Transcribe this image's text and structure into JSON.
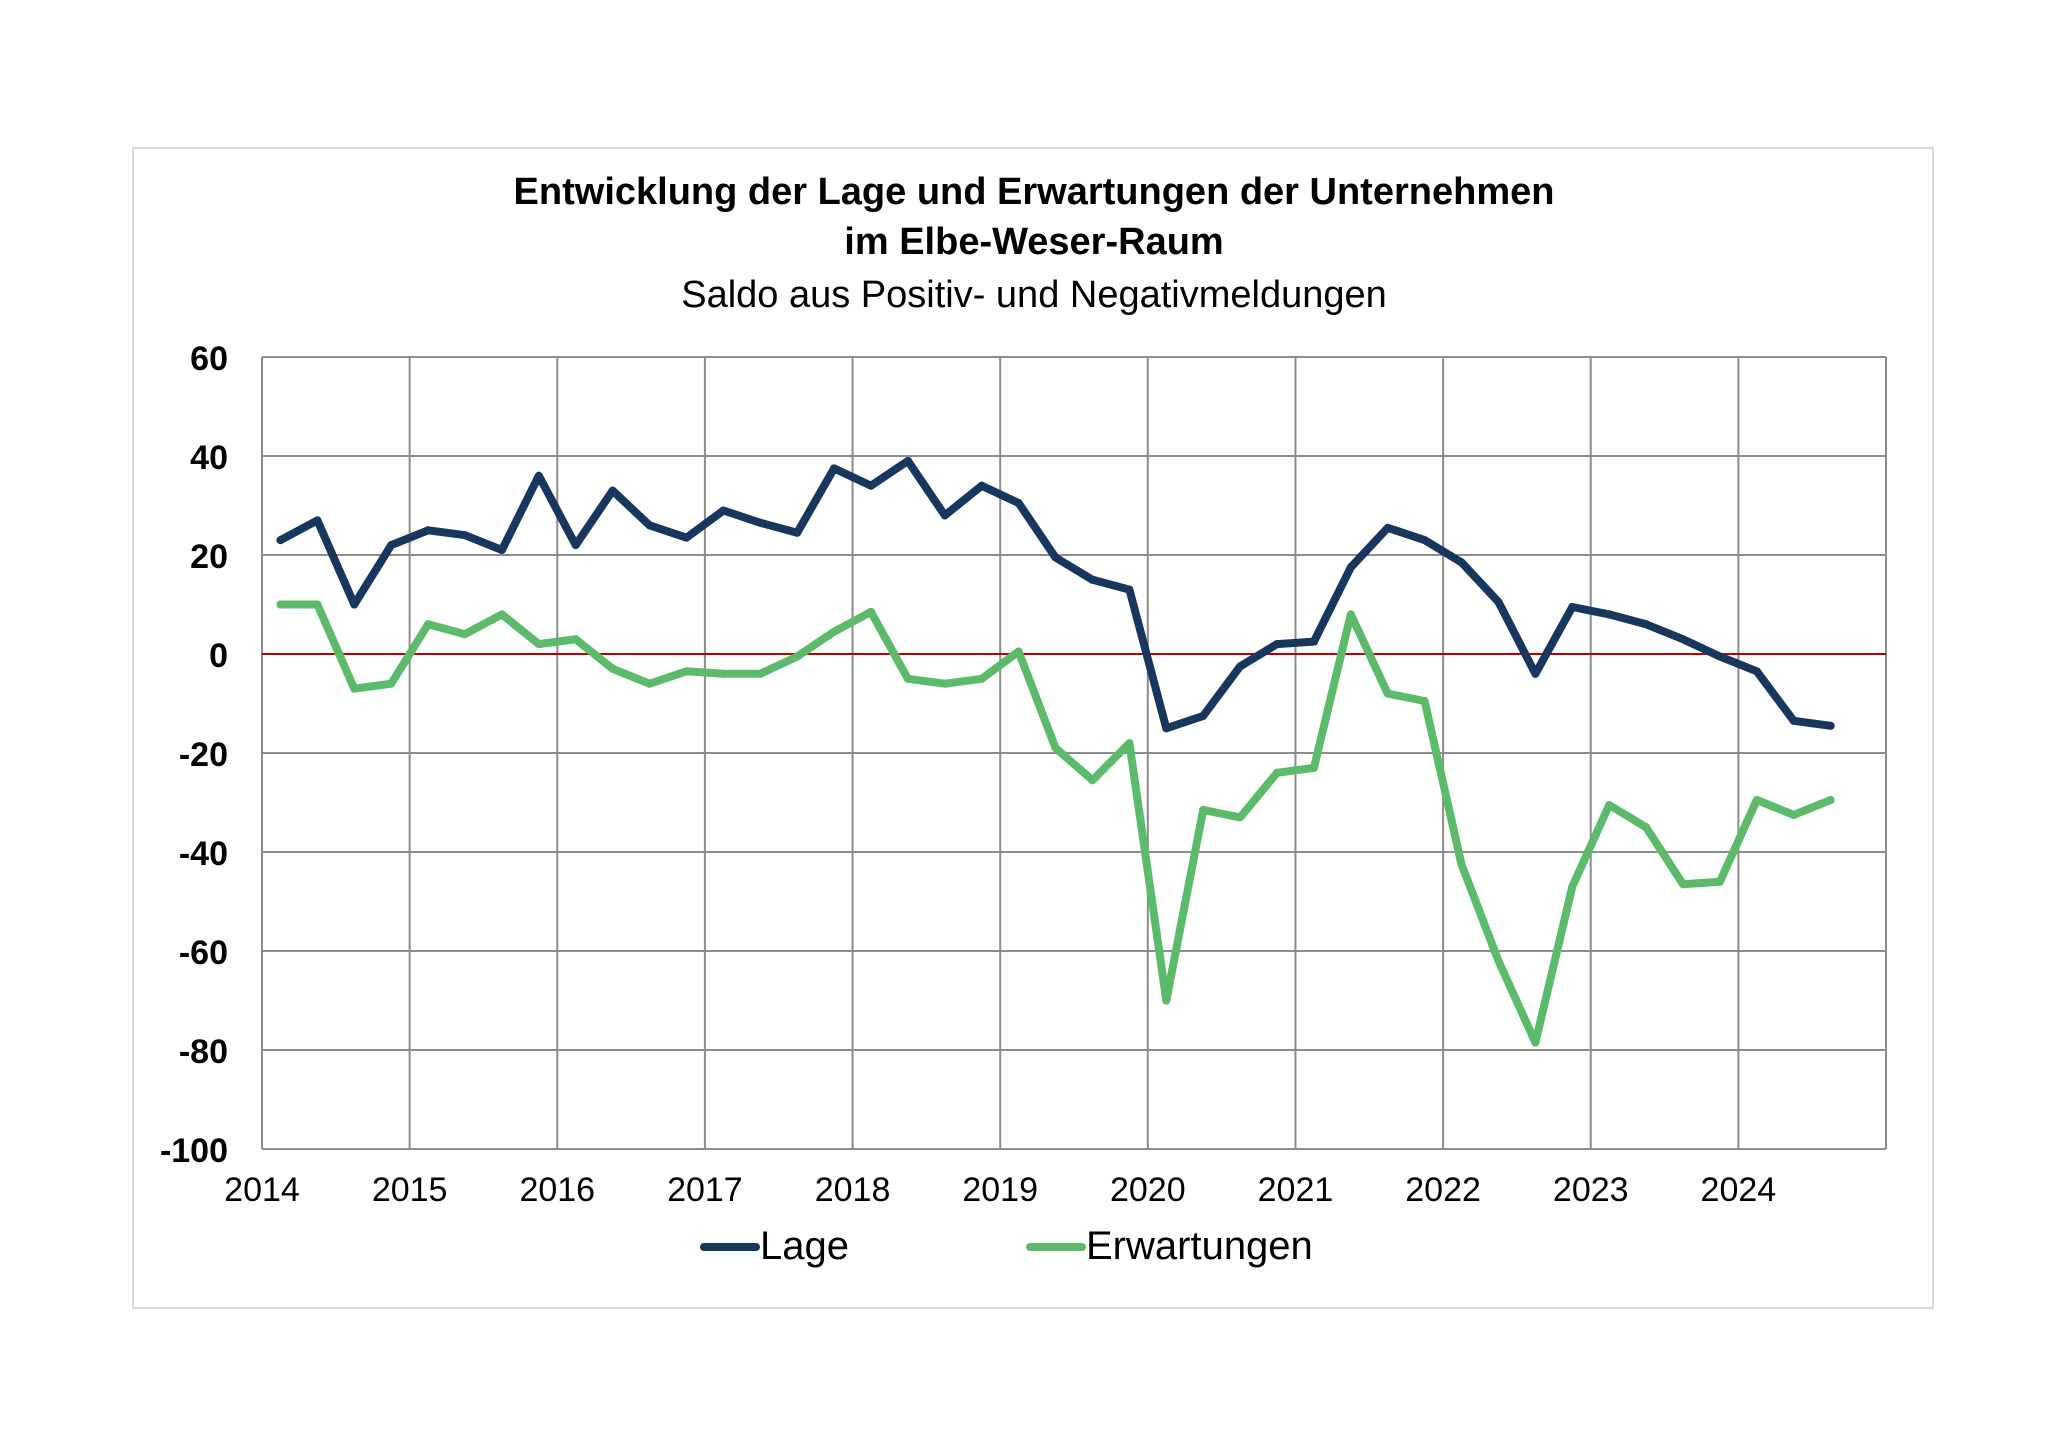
{
  "chart_data": {
    "type": "line",
    "title": "Entwicklung der Lage und Erwartungen der Unternehmen",
    "title_line2": "im Elbe-Weser-Raum",
    "subtitle": "Saldo aus Positiv- und Negativmeldungen",
    "xlabel": "",
    "ylabel": "",
    "ylim": [
      -100,
      60
    ],
    "y_ticks": [
      "60",
      "40",
      "20",
      "0",
      "-20",
      "-40",
      "-60",
      "-80",
      "-100"
    ],
    "x_range": [
      2014,
      2025
    ],
    "x_ticks": [
      "2014",
      "2015",
      "2016",
      "2017",
      "2018",
      "2019",
      "2020",
      "2021",
      "2022",
      "2023",
      "2024"
    ],
    "grid": true,
    "zero_line_color": "#c00000",
    "legend_position": "bottom",
    "series": [
      {
        "name": "Lage",
        "color": "#17375e",
        "x": [
          2014.125,
          2014.375,
          2014.625,
          2014.875,
          2015.125,
          2015.375,
          2015.625,
          2015.875,
          2016.125,
          2016.375,
          2016.625,
          2016.875,
          2017.125,
          2017.375,
          2017.625,
          2017.875,
          2018.125,
          2018.375,
          2018.625,
          2018.875,
          2019.125,
          2019.375,
          2019.625,
          2019.875,
          2020.125,
          2020.375,
          2020.625,
          2020.875,
          2021.125,
          2021.375,
          2021.625,
          2021.875,
          2022.125,
          2022.375,
          2022.625,
          2022.875,
          2023.125,
          2023.375,
          2023.625,
          2023.875,
          2024.125,
          2024.375,
          2024.625
        ],
        "values": [
          23,
          27,
          10,
          22,
          25,
          24,
          21,
          36,
          22,
          33,
          26,
          23.5,
          29,
          26.5,
          24.5,
          37.5,
          34,
          39,
          28,
          34,
          30.5,
          19.5,
          15,
          13,
          -15,
          -12.5,
          -2.5,
          2,
          2.5,
          17.5,
          25.5,
          23,
          18.5,
          10.5,
          -4,
          9.5,
          8,
          6,
          3,
          -0.5,
          -3.5,
          -13.5,
          -14.5
        ]
      },
      {
        "name": "Erwartungen",
        "color": "#5cbb6a",
        "x": [
          2014.125,
          2014.375,
          2014.625,
          2014.875,
          2015.125,
          2015.375,
          2015.625,
          2015.875,
          2016.125,
          2016.375,
          2016.625,
          2016.875,
          2017.125,
          2017.375,
          2017.625,
          2017.875,
          2018.125,
          2018.375,
          2018.625,
          2018.875,
          2019.125,
          2019.375,
          2019.625,
          2019.875,
          2020.125,
          2020.375,
          2020.625,
          2020.875,
          2021.125,
          2021.375,
          2021.625,
          2021.875,
          2022.125,
          2022.375,
          2022.625,
          2022.875,
          2023.125,
          2023.375,
          2023.625,
          2023.875,
          2024.125,
          2024.375,
          2024.625
        ],
        "values": [
          10,
          10,
          -7,
          -6,
          6,
          4,
          8,
          2,
          3,
          -3,
          -6,
          -3.5,
          -4,
          -4,
          -0.5,
          4.5,
          8.5,
          -5,
          -6,
          -5,
          0.5,
          -19,
          -25.5,
          -18,
          -70,
          -31.5,
          -33,
          -24,
          -23,
          8,
          -8,
          -9.5,
          -42.5,
          -62,
          -78.5,
          -47,
          -30.5,
          -35,
          -46.5,
          -46,
          -29.5,
          -32.5,
          -29.5
        ]
      }
    ]
  }
}
